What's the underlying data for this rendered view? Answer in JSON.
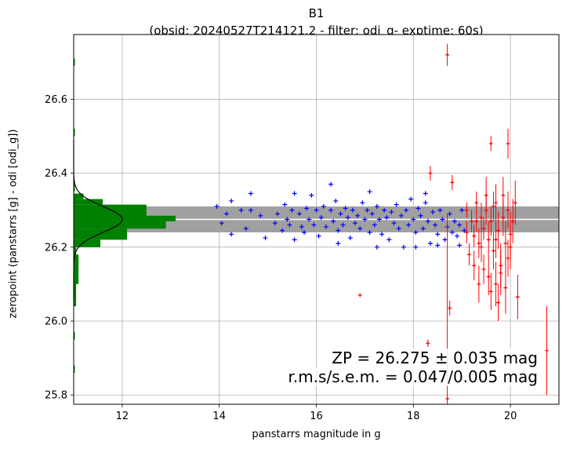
{
  "chart_data": {
    "type": "scatter",
    "title": "B1",
    "subtitle": "(obsid: 20240527T214121.2 - filter: odi_g- exptime: 60s)",
    "xlabel": "panstarrs magnitude in g",
    "ylabel": "zeropoint (panstarrs [g] - odi [odi_g])",
    "xlim": [
      11.0,
      21.0
    ],
    "ylim": [
      25.775,
      26.775
    ],
    "xticks": [
      12,
      14,
      16,
      18,
      20
    ],
    "yticks": [
      25.8,
      26.0,
      26.2,
      26.4,
      26.6
    ],
    "grid": true,
    "zp_value": 26.275,
    "zp_band": [
      26.24,
      26.31
    ],
    "annotation_zp": "ZP = 26.275 ± 0.035 mag",
    "annotation_rms": "r.m.s/s.e.m. = 0.047/0.005 mag",
    "colors": {
      "used": "#0000ff",
      "rejected": "#ff0000",
      "histogram": "#008000",
      "band": "#a0a0a0",
      "fit_line": "#000000"
    },
    "series": [
      {
        "marker": "plus",
        "color": "#0000ff",
        "points": [
          [
            13.95,
            26.31
          ],
          [
            14.05,
            26.265
          ],
          [
            14.15,
            26.29
          ],
          [
            14.25,
            26.325
          ],
          [
            14.25,
            26.235
          ],
          [
            14.45,
            26.3
          ],
          [
            14.55,
            26.25
          ],
          [
            14.65,
            26.3
          ],
          [
            14.65,
            26.345
          ],
          [
            14.85,
            26.285
          ],
          [
            14.95,
            26.225
          ],
          [
            15.15,
            26.265
          ],
          [
            15.2,
            26.29
          ],
          [
            15.3,
            26.245
          ],
          [
            15.35,
            26.315
          ],
          [
            15.4,
            26.275
          ],
          [
            15.45,
            26.26
          ],
          [
            15.5,
            26.3
          ],
          [
            15.55,
            26.345
          ],
          [
            15.65,
            26.29
          ],
          [
            15.7,
            26.255
          ],
          [
            15.75,
            26.24
          ],
          [
            15.8,
            26.305
          ],
          [
            15.85,
            26.275
          ],
          [
            15.9,
            26.34
          ],
          [
            15.95,
            26.26
          ],
          [
            16.0,
            26.3
          ],
          [
            16.05,
            26.23
          ],
          [
            16.1,
            26.28
          ],
          [
            16.15,
            26.31
          ],
          [
            16.2,
            26.255
          ],
          [
            16.3,
            26.3
          ],
          [
            16.35,
            26.27
          ],
          [
            16.4,
            26.325
          ],
          [
            16.45,
            26.245
          ],
          [
            16.5,
            26.29
          ],
          [
            16.55,
            26.26
          ],
          [
            16.6,
            26.305
          ],
          [
            16.65,
            26.28
          ],
          [
            16.7,
            26.225
          ],
          [
            16.75,
            26.3
          ],
          [
            16.8,
            26.265
          ],
          [
            16.85,
            26.285
          ],
          [
            16.9,
            26.25
          ],
          [
            16.95,
            26.32
          ],
          [
            17.0,
            26.275
          ],
          [
            17.05,
            26.3
          ],
          [
            17.1,
            26.24
          ],
          [
            17.15,
            26.29
          ],
          [
            17.2,
            26.26
          ],
          [
            17.25,
            26.31
          ],
          [
            17.3,
            26.275
          ],
          [
            17.35,
            26.235
          ],
          [
            17.4,
            26.3
          ],
          [
            17.45,
            26.28
          ],
          [
            17.5,
            26.22
          ],
          [
            17.55,
            26.295
          ],
          [
            17.6,
            26.265
          ],
          [
            17.65,
            26.315
          ],
          [
            17.7,
            26.25
          ],
          [
            17.75,
            26.285
          ],
          [
            17.8,
            26.2
          ],
          [
            17.85,
            26.3
          ],
          [
            17.9,
            26.26
          ],
          [
            17.95,
            26.33
          ],
          [
            18.0,
            26.275
          ],
          [
            18.05,
            26.24
          ],
          [
            18.1,
            26.305
          ],
          [
            18.15,
            26.285
          ],
          [
            18.2,
            26.25
          ],
          [
            18.25,
            26.32
          ],
          [
            18.3,
            26.27
          ],
          [
            18.35,
            26.21
          ],
          [
            18.4,
            26.295
          ],
          [
            18.45,
            26.26
          ],
          [
            18.5,
            26.235
          ],
          [
            18.55,
            26.3
          ],
          [
            18.6,
            26.275
          ],
          [
            18.65,
            26.22
          ],
          [
            18.7,
            26.255
          ],
          [
            18.75,
            26.29
          ],
          [
            18.8,
            26.24
          ],
          [
            18.85,
            26.27
          ],
          [
            18.9,
            26.23
          ],
          [
            18.95,
            26.26
          ],
          [
            19.0,
            26.3
          ],
          [
            19.05,
            26.245
          ],
          [
            16.3,
            26.37
          ],
          [
            17.1,
            26.35
          ],
          [
            18.25,
            26.345
          ],
          [
            15.55,
            26.22
          ],
          [
            16.45,
            26.21
          ],
          [
            17.25,
            26.2
          ],
          [
            18.05,
            26.2
          ],
          [
            18.5,
            26.205
          ],
          [
            18.95,
            26.205
          ]
        ]
      },
      {
        "marker": "errorbar",
        "color": "#ff0000",
        "points": [
          [
            18.7,
            26.72,
            0.03
          ],
          [
            18.7,
            25.79,
            0.5
          ],
          [
            19.6,
            26.48,
            0.02
          ],
          [
            19.95,
            26.48,
            0.04
          ],
          [
            18.35,
            26.4,
            0.02
          ],
          [
            18.8,
            26.375,
            0.02
          ],
          [
            16.9,
            26.07,
            0.0
          ],
          [
            18.75,
            26.035,
            0.02
          ],
          [
            18.3,
            25.94,
            0.01
          ],
          [
            20.75,
            25.92,
            0.12
          ],
          [
            20.15,
            26.065,
            0.06
          ],
          [
            20.1,
            26.32,
            0.06
          ],
          [
            19.1,
            26.3,
            0.02
          ],
          [
            19.2,
            26.27,
            0.03
          ],
          [
            19.25,
            26.23,
            0.03
          ],
          [
            19.3,
            26.32,
            0.03
          ],
          [
            19.35,
            26.21,
            0.04
          ],
          [
            19.4,
            26.28,
            0.04
          ],
          [
            19.45,
            26.25,
            0.03
          ],
          [
            19.5,
            26.3,
            0.04
          ],
          [
            19.55,
            26.22,
            0.05
          ],
          [
            19.6,
            26.27,
            0.04
          ],
          [
            19.65,
            26.19,
            0.05
          ],
          [
            19.7,
            26.32,
            0.05
          ],
          [
            19.75,
            26.245,
            0.05
          ],
          [
            19.8,
            26.15,
            0.06
          ],
          [
            19.85,
            26.28,
            0.05
          ],
          [
            19.9,
            26.21,
            0.06
          ],
          [
            19.95,
            26.3,
            0.05
          ],
          [
            20.0,
            26.235,
            0.06
          ],
          [
            20.05,
            26.27,
            0.06
          ],
          [
            19.15,
            26.18,
            0.03
          ],
          [
            19.25,
            26.15,
            0.04
          ],
          [
            19.35,
            26.1,
            0.05
          ],
          [
            19.45,
            26.14,
            0.04
          ],
          [
            19.55,
            26.12,
            0.05
          ],
          [
            19.6,
            26.08,
            0.05
          ],
          [
            19.7,
            26.1,
            0.06
          ],
          [
            19.75,
            26.05,
            0.05
          ],
          [
            19.8,
            26.13,
            0.06
          ],
          [
            19.9,
            26.09,
            0.07
          ],
          [
            19.95,
            26.17,
            0.05
          ],
          [
            19.5,
            26.34,
            0.05
          ],
          [
            19.65,
            26.31,
            0.04
          ],
          [
            19.85,
            26.34,
            0.05
          ],
          [
            20.0,
            26.2,
            0.06
          ],
          [
            19.1,
            26.24,
            0.03
          ],
          [
            19.3,
            26.27,
            0.03
          ],
          [
            19.4,
            26.2,
            0.04
          ],
          [
            19.7,
            26.22,
            0.05
          ]
        ]
      }
    ],
    "histogram": {
      "orientation": "horizontal",
      "bins": [
        [
          26.28,
          26.315,
          1.5
        ],
        [
          26.25,
          26.28,
          1.9
        ],
        [
          26.27,
          26.285,
          2.1
        ],
        [
          26.22,
          26.25,
          1.1
        ],
        [
          26.2,
          26.22,
          0.55
        ],
        [
          26.315,
          26.33,
          0.6
        ],
        [
          26.33,
          26.345,
          0.2
        ],
        [
          26.18,
          26.2,
          0.05
        ],
        [
          26.1,
          26.18,
          0.1
        ],
        [
          26.04,
          26.1,
          0.05
        ],
        [
          26.35,
          26.37,
          0.02
        ],
        [
          26.69,
          26.71,
          0.02
        ],
        [
          26.5,
          26.52,
          0.02
        ],
        [
          25.95,
          25.97,
          0.02
        ],
        [
          25.86,
          25.88,
          0.02
        ]
      ]
    },
    "fit_curve": {
      "mean": 26.275,
      "sigma": 0.035,
      "peak": 1.0
    }
  }
}
